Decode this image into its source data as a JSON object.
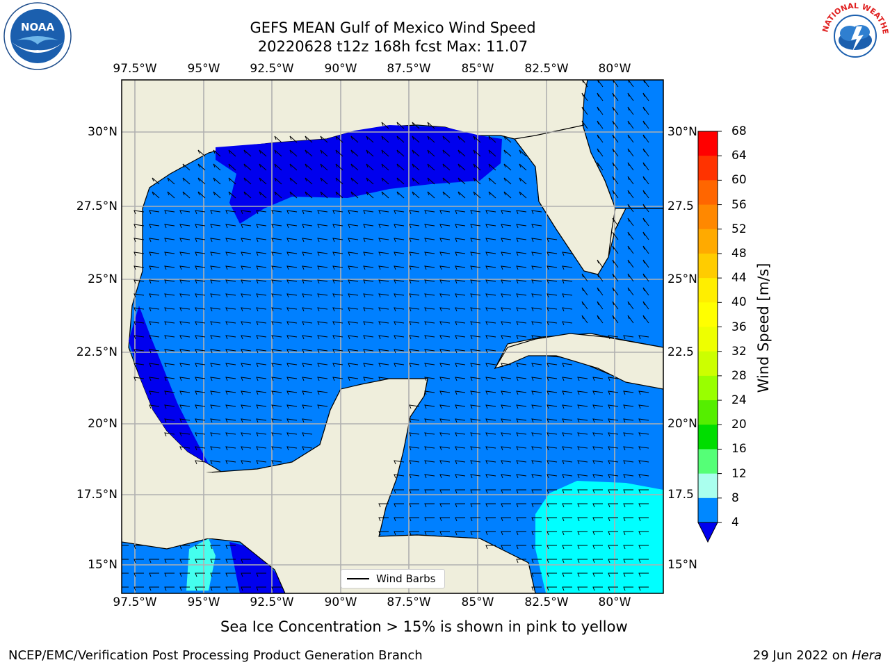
{
  "header": {
    "title_line1": "GEFS MEAN Gulf of Mexico Wind Speed",
    "title_line2": "20220628 t12z 168h fcst   Max: 11.07"
  },
  "logos": {
    "left_text": "NOAA",
    "right_text": "NATIONAL WEATHER SERVICE"
  },
  "axes": {
    "longitude_labels": [
      "97.5°W",
      "95°W",
      "92.5°W",
      "90°W",
      "87.5°W",
      "85°W",
      "82.5°W",
      "80°W"
    ],
    "latitude_labels_left": [
      "30°N",
      "27.5°N",
      "25°N",
      "22.5°N",
      "20°N",
      "17.5°N",
      "15°N"
    ],
    "latitude_labels_right": [
      "30°N",
      "27.5",
      "25°N",
      "22.5",
      "20°N",
      "17.5",
      "15°N"
    ]
  },
  "colorbar": {
    "label": "Wind Speed [m/s]",
    "ticks": [
      "68",
      "64",
      "60",
      "56",
      "52",
      "48",
      "44",
      "40",
      "36",
      "32",
      "28",
      "24",
      "20",
      "16",
      "12",
      "8",
      "4"
    ],
    "colors": [
      "#ff0000",
      "#ff3300",
      "#ff6600",
      "#ff8800",
      "#ffaa00",
      "#ffcc00",
      "#ffee00",
      "#ffff00",
      "#eeff00",
      "#ccff00",
      "#99ff00",
      "#55ee00",
      "#00dd00",
      "#55ff77",
      "#aaffee",
      "#55ffee",
      "#00ffee",
      "#0088ff"
    ],
    "extend_color": "#0000ee"
  },
  "legend": {
    "label": "Wind Barbs"
  },
  "notes": {
    "ice": "Sea Ice Concentration > 15% is shown in pink to yellow"
  },
  "footer": {
    "left": "NCEP/EMC/Verification Post Processing Product Generation Branch",
    "right_date": "29 Jun 2022 on ",
    "right_machine": "Hera"
  },
  "map_colors": {
    "land": "#efeedc",
    "ocean_4_8": "#0080ff",
    "ocean_lt4": "#0000ee",
    "ocean_8_12": "#00ffff",
    "ocean_12_16": "#44ffee",
    "grid": "#b0b0b0"
  }
}
